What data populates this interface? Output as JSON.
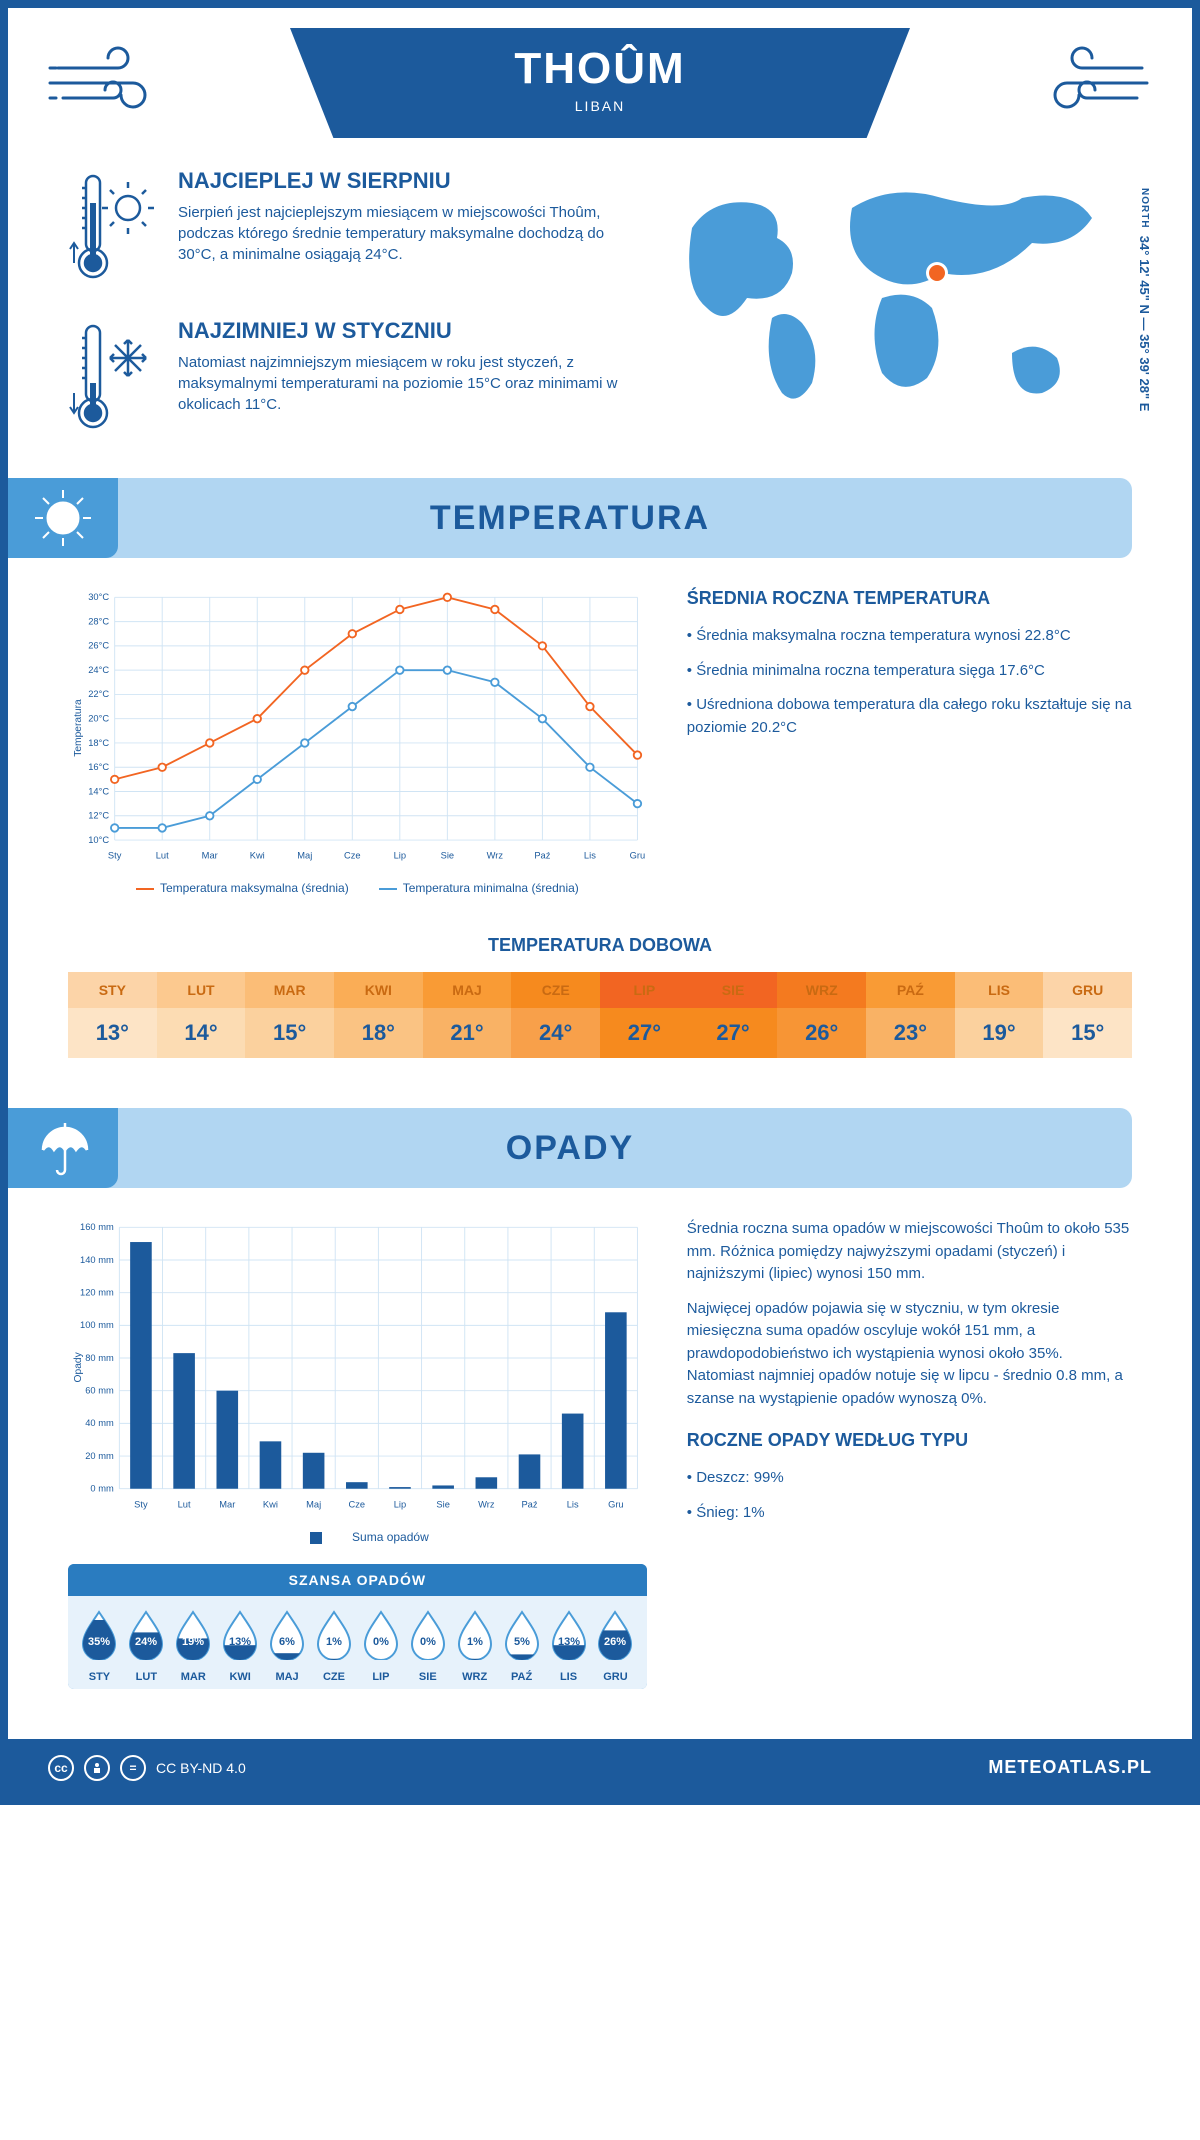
{
  "header": {
    "city": "THOÛM",
    "country": "LIBAN",
    "coords": "34° 12' 45\" N — 35° 39' 28\" E",
    "north_label": "NORTH"
  },
  "intro": {
    "hot": {
      "title": "NAJCIEPLEJ W SIERPNIU",
      "text": "Sierpień jest najcieplejszym miesiącem w miejscowości Thoûm, podczas którego średnie temperatury maksymalne dochodzą do 30°C, a minimalne osiągają 24°C."
    },
    "cold": {
      "title": "NAJZIMNIEJ W STYCZNIU",
      "text": "Natomiast najzimniejszym miesiącem w roku jest styczeń, z maksymalnymi temperaturami na poziomie 15°C oraz minimami w okolicach 11°C."
    }
  },
  "sections": {
    "temp_title": "TEMPERATURA",
    "precip_title": "OPADY"
  },
  "colors": {
    "primary": "#1c5a9c",
    "secondary": "#4a9cd8",
    "light": "#b1d6f2",
    "pale": "#e7f2fb",
    "accent_orange": "#f26522",
    "white": "#ffffff"
  },
  "temp_chart": {
    "type": "line",
    "months": [
      "Sty",
      "Lut",
      "Mar",
      "Kwi",
      "Maj",
      "Cze",
      "Lip",
      "Sie",
      "Wrz",
      "Paź",
      "Lis",
      "Gru"
    ],
    "max_series": {
      "label": "Temperatura maksymalna (średnia)",
      "color": "#f26522",
      "values": [
        15,
        16,
        18,
        20,
        24,
        27,
        29,
        30,
        29,
        26,
        21,
        17
      ]
    },
    "min_series": {
      "label": "Temperatura minimalna (średnia)",
      "color": "#4a9cd8",
      "values": [
        11,
        11,
        12,
        15,
        18,
        21,
        24,
        24,
        23,
        20,
        16,
        13
      ]
    },
    "ylim": [
      10,
      30
    ],
    "ytick_step": 2,
    "y_suffix": "°C",
    "y_title": "Temperatura",
    "grid_color": "#d0e4f4",
    "background_color": "#ffffff",
    "line_width": 2,
    "marker_size": 4
  },
  "temp_side": {
    "heading": "ŚREDNIA ROCZNA TEMPERATURA",
    "b1": "• Średnia maksymalna roczna temperatura wynosi 22.8°C",
    "b2": "• Średnia minimalna roczna temperatura sięga 17.6°C",
    "b3": "• Uśredniona dobowa temperatura dla całego roku kształtuje się na poziomie 20.2°C"
  },
  "daily_temp": {
    "heading": "TEMPERATURA DOBOWA",
    "months": [
      "STY",
      "LUT",
      "MAR",
      "KWI",
      "MAJ",
      "CZE",
      "LIP",
      "SIE",
      "WRZ",
      "PAŹ",
      "LIS",
      "GRU"
    ],
    "values": [
      "13°",
      "14°",
      "15°",
      "18°",
      "21°",
      "24°",
      "27°",
      "27°",
      "26°",
      "23°",
      "19°",
      "15°"
    ],
    "header_colors": [
      "#fcd4a8",
      "#fcc98f",
      "#fbbd77",
      "#faad56",
      "#f99b35",
      "#f68a1e",
      "#f26522",
      "#f26522",
      "#f47a1f",
      "#f99b35",
      "#fbbd77",
      "#fcd4a8"
    ],
    "value_colors": [
      "#fde4c6",
      "#fcdcb3",
      "#fbd19e",
      "#fac383",
      "#f9b265",
      "#f8a04a",
      "#f68a1e",
      "#f68a1e",
      "#f79535",
      "#f9b265",
      "#fbd19e",
      "#fde4c6"
    ],
    "header_text_color": "#c96a12"
  },
  "precip_chart": {
    "type": "bar",
    "months": [
      "Sty",
      "Lut",
      "Mar",
      "Kwi",
      "Maj",
      "Cze",
      "Lip",
      "Sie",
      "Wrz",
      "Paź",
      "Lis",
      "Gru"
    ],
    "values": [
      151,
      83,
      60,
      29,
      22,
      4,
      1,
      2,
      7,
      21,
      46,
      108
    ],
    "legend": "Suma opadów",
    "bar_color": "#1c5a9c",
    "ylim": [
      0,
      160
    ],
    "ytick_step": 20,
    "y_suffix": " mm",
    "y_title": "Opady",
    "grid_color": "#d0e4f4",
    "bar_width": 0.5
  },
  "precip_side": {
    "p1": "Średnia roczna suma opadów w miejscowości Thoûm to około 535 mm. Różnica pomiędzy najwyższymi opadami (styczeń) i najniższymi (lipiec) wynosi 150 mm.",
    "p2": "Najwięcej opadów pojawia się w styczniu, w tym okresie miesięczna suma opadów oscyluje wokół 151 mm, a prawdopodobieństwo ich wystąpienia wynosi około 35%. Natomiast najmniej opadów notuje się w lipcu - średnio 0.8 mm, a szanse na wystąpienie opadów wynoszą 0%.",
    "heading2": "ROCZNE OPADY WEDŁUG TYPU",
    "rain": "• Deszcz: 99%",
    "snow": "• Śnieg: 1%"
  },
  "chance_table": {
    "heading": "SZANSA OPADÓW",
    "months": [
      "STY",
      "LUT",
      "MAR",
      "KWI",
      "MAJ",
      "CZE",
      "LIP",
      "SIE",
      "WRZ",
      "PAŹ",
      "LIS",
      "GRU"
    ],
    "values": [
      "35%",
      "24%",
      "19%",
      "13%",
      "6%",
      "1%",
      "0%",
      "0%",
      "1%",
      "5%",
      "13%",
      "26%"
    ],
    "fill_pct": [
      100,
      69,
      54,
      37,
      17,
      3,
      0,
      0,
      3,
      14,
      37,
      74
    ],
    "drop_fill": "#1c5a9c",
    "drop_stroke": "#4a9cd8",
    "drop_empty_fill": "#ffffff"
  },
  "footer": {
    "license": "CC BY-ND 4.0",
    "site": "METEOATLAS.PL"
  }
}
